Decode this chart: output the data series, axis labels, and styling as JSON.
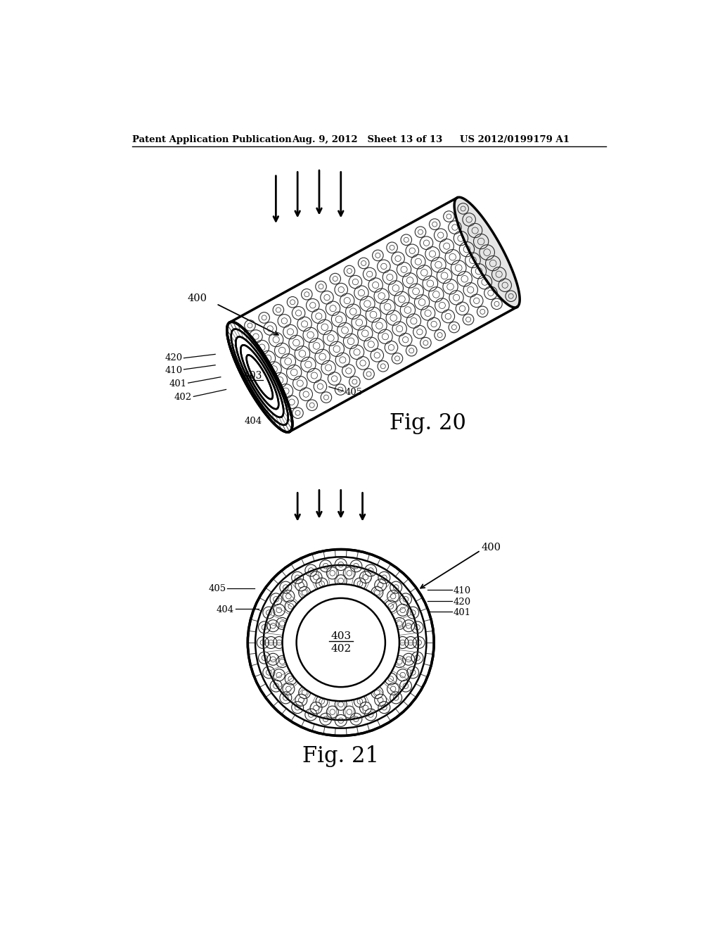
{
  "header_left": "Patent Application Publication",
  "header_mid": "Aug. 9, 2012   Sheet 13 of 13",
  "header_right": "US 2012/0199179 A1",
  "fig20_label": "Fig. 20",
  "fig21_label": "Fig. 21",
  "bg_color": "#ffffff",
  "line_color": "#000000",
  "fig20_arrows": [
    [
      340,
      115,
      340,
      210
    ],
    [
      380,
      108,
      380,
      200
    ],
    [
      420,
      105,
      420,
      195
    ],
    [
      460,
      108,
      460,
      200
    ]
  ],
  "fig21_arrows": [
    [
      380,
      700,
      380,
      760
    ],
    [
      420,
      695,
      420,
      755
    ],
    [
      460,
      695,
      460,
      755
    ],
    [
      500,
      700,
      500,
      760
    ]
  ]
}
